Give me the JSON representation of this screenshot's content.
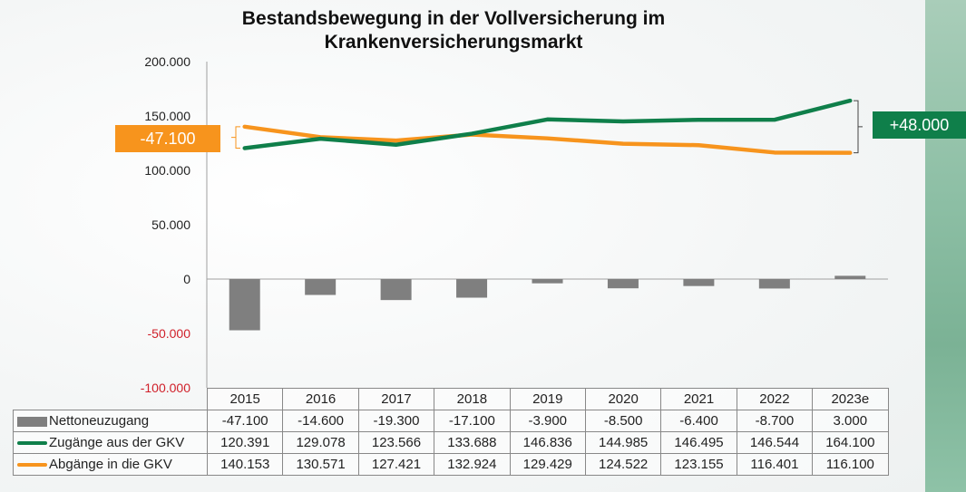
{
  "chart_data": {
    "type": "bar+line",
    "title": "Bestandsbewegung in der Vollversicherung im Krankenversicherungsmarkt",
    "title_lines": [
      "Bestandsbewegung in der Vollversicherung im",
      "Krankenversicherungsmarkt"
    ],
    "categories": [
      "2015",
      "2016",
      "2017",
      "2018",
      "2019",
      "2020",
      "2021",
      "2022",
      "2023e"
    ],
    "ylim": [
      -100000,
      200000
    ],
    "yticks": [
      200000,
      150000,
      100000,
      50000,
      0,
      -50000,
      -100000
    ],
    "ytick_labels": [
      "200.000",
      "150.000",
      "100.000",
      "50.000",
      "0",
      "-50.000",
      "-100.000"
    ],
    "series": [
      {
        "name": "Nettoneuzugang",
        "type": "bar",
        "color": "#7f7f7f",
        "values": [
          -47100,
          -14600,
          -19300,
          -17100,
          -3900,
          -8500,
          -6400,
          -8700,
          3000
        ],
        "labels": [
          "-47.100",
          "-14.600",
          "-19.300",
          "-17.100",
          "-3.900",
          "-8.500",
          "-6.400",
          "-8.700",
          "3.000"
        ]
      },
      {
        "name": "Zugänge aus der GKV",
        "type": "line",
        "color": "#0f7f4a",
        "values": [
          120391,
          129078,
          123566,
          133688,
          146836,
          144985,
          146495,
          146544,
          164100
        ],
        "labels": [
          "120.391",
          "129.078",
          "123.566",
          "133.688",
          "146.836",
          "144.985",
          "146.495",
          "146.544",
          "164.100"
        ]
      },
      {
        "name": "Abgänge in die GKV",
        "type": "line",
        "color": "#f7941d",
        "values": [
          140153,
          130571,
          127421,
          132924,
          129429,
          124522,
          123155,
          116401,
          116100
        ],
        "labels": [
          "140.153",
          "130.571",
          "127.421",
          "132.924",
          "129.429",
          "124.522",
          "123.155",
          "116.401",
          "116.100"
        ]
      }
    ],
    "annotations": [
      {
        "text": "-47.100",
        "color": "#f7941d",
        "refers_to": "2015 gap"
      },
      {
        "text": "+48.000",
        "color": "#0f7f4a",
        "refers_to": "2023e gap"
      }
    ],
    "data_table": true,
    "grid": false
  }
}
